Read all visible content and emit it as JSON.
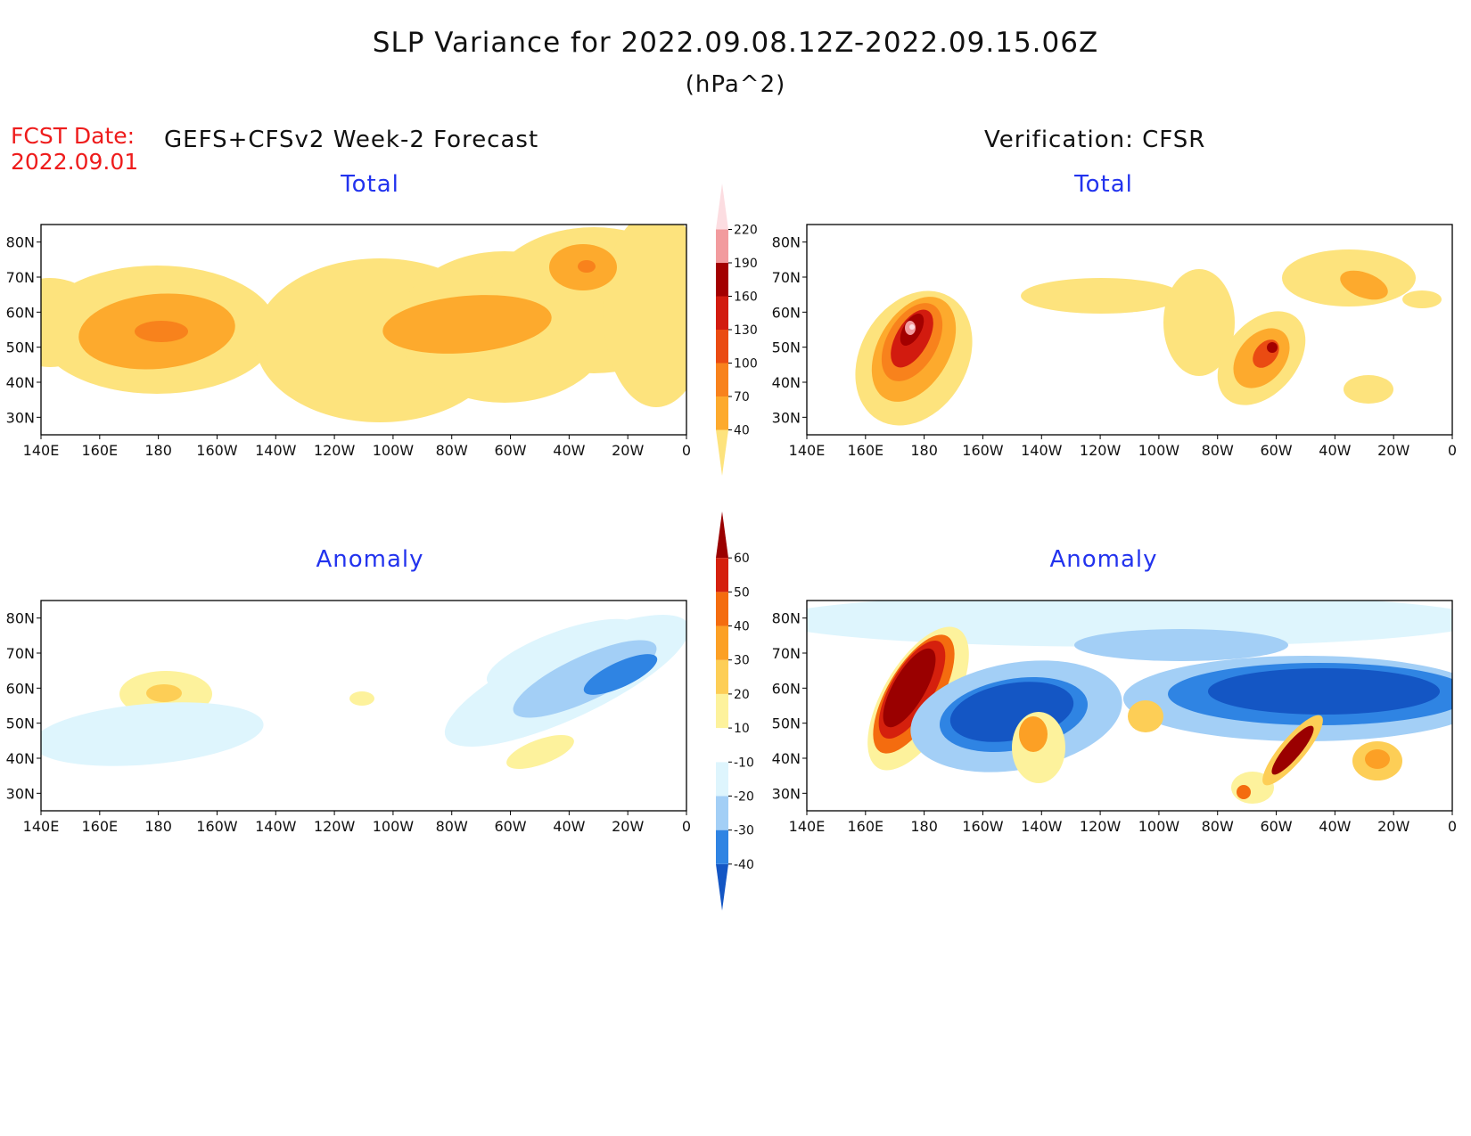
{
  "header": {
    "title": "SLP Variance for 2022.09.08.12Z-2022.09.15.06Z",
    "units": "(hPa^2)",
    "fcst_label": "FCST Date:",
    "fcst_date": "2022.09.01",
    "left_heading": "GEFS+CFSv2 Week-2 Forecast",
    "right_heading": "Verification: CFSR"
  },
  "panels": {
    "top_left_title": "Total",
    "top_right_title": "Total",
    "bottom_left_title": "Anomaly",
    "bottom_right_title": "Anomaly"
  },
  "axes": {
    "lon_ticks": [
      "140E",
      "160E",
      "180",
      "160W",
      "140W",
      "120W",
      "100W",
      "80W",
      "60W",
      "40W",
      "20W",
      "0"
    ],
    "lat_ticks": [
      "80N",
      "70N",
      "60N",
      "50N",
      "40N",
      "30N"
    ],
    "lon_range": [
      140,
      360
    ],
    "lat_range": [
      25,
      85
    ]
  },
  "colorbars": {
    "total": {
      "levels": [
        "40",
        "70",
        "100",
        "130",
        "160",
        "190",
        "220"
      ],
      "colors": [
        "#fde37d",
        "#fdaa2d",
        "#f8821c",
        "#ea4b12",
        "#d21b0f",
        "#a30000",
        "#f29b9e",
        "#fcdde1"
      ]
    },
    "anomaly": {
      "levels": [
        "-40",
        "-30",
        "-20",
        "-10",
        "10",
        "20",
        "30",
        "40",
        "50",
        "60"
      ],
      "colors": [
        "#1456c4",
        "#2f84e3",
        "#a3cff6",
        "#def5fd",
        "#ffffff",
        "#fdf29c",
        "#fdce56",
        "#fca025",
        "#f46c0f",
        "#d5200d",
        "#9a0000"
      ]
    }
  }
}
